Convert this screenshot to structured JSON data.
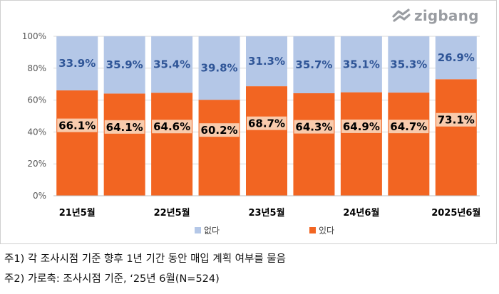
{
  "brand": {
    "logo_text": "zigbang",
    "logo_icon": "zigbang-logo-icon",
    "logo_color": "#9a9da2"
  },
  "chart_data": {
    "type": "bar",
    "stacked": true,
    "categories": [
      "21년5월",
      "",
      "22년5월",
      "",
      "23년5월",
      "",
      "24년6월",
      "",
      "2025년6월"
    ],
    "series": [
      {
        "name": "있다",
        "color": "#f26522",
        "values": [
          66.1,
          64.1,
          64.6,
          60.2,
          68.7,
          64.3,
          64.9,
          64.7,
          73.1
        ],
        "labels": [
          "66.1%",
          "64.1%",
          "64.6%",
          "60.2%",
          "68.7%",
          "64.3%",
          "64.9%",
          "64.7%",
          "73.1%"
        ]
      },
      {
        "name": "없다",
        "color": "#b4c7e7",
        "values": [
          33.9,
          35.9,
          35.4,
          39.8,
          31.3,
          35.7,
          35.1,
          35.3,
          26.9
        ],
        "labels": [
          "33.9%",
          "35.9%",
          "35.4%",
          "39.8%",
          "31.3%",
          "35.7%",
          "35.1%",
          "35.3%",
          "26.9%"
        ]
      }
    ],
    "ylim": [
      0,
      100
    ],
    "yticks": [
      "0%",
      "20%",
      "40%",
      "60%",
      "80%",
      "100%"
    ],
    "grid": true,
    "legend_position": "bottom",
    "legend": [
      "없다",
      "있다"
    ]
  },
  "notes": {
    "note1": "주1) 각 조사시점 기준 향후 1년 기간 동안 매입 계획 여부를 물음",
    "note2": "주2) 가로축: 조사시점 기준, ‘25년 6월(N=524)"
  }
}
